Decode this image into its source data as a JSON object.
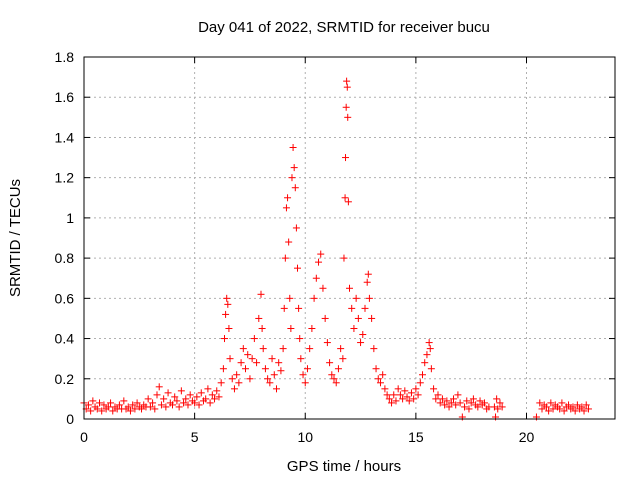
{
  "chart_data": {
    "type": "scatter",
    "title": "Day 041 of 2022, SRMTID for receiver bucu",
    "xlabel": "GPS time / hours",
    "ylabel": "SRMTID / TECUs",
    "xlim": [
      0,
      24
    ],
    "ylim": [
      0,
      1.8
    ],
    "xticks": [
      0,
      5,
      10,
      15,
      20
    ],
    "xtick_labels": [
      "0",
      "5",
      "10",
      "15",
      "20"
    ],
    "yticks": [
      0,
      0.2,
      0.4,
      0.6,
      0.8,
      1.0,
      1.2,
      1.4,
      1.6,
      1.8
    ],
    "ytick_labels": [
      "0",
      "0.2",
      "0.4",
      "0.6",
      "0.8",
      "1",
      "1.2",
      "1.4",
      "1.6",
      "1.8"
    ],
    "grid": true,
    "marker": "+",
    "color": "#ff0000",
    "series": [
      {
        "name": "SRMTID",
        "points": [
          [
            0.0,
            0.08
          ],
          [
            0.1,
            0.05
          ],
          [
            0.2,
            0.07
          ],
          [
            0.3,
            0.04
          ],
          [
            0.4,
            0.09
          ],
          [
            0.5,
            0.06
          ],
          [
            0.6,
            0.05
          ],
          [
            0.7,
            0.08
          ],
          [
            0.8,
            0.04
          ],
          [
            0.9,
            0.07
          ],
          [
            1.0,
            0.05
          ],
          [
            1.1,
            0.06
          ],
          [
            1.2,
            0.08
          ],
          [
            1.3,
            0.04
          ],
          [
            1.4,
            0.06
          ],
          [
            1.5,
            0.05
          ],
          [
            1.6,
            0.07
          ],
          [
            1.7,
            0.05
          ],
          [
            1.8,
            0.09
          ],
          [
            1.9,
            0.05
          ],
          [
            2.0,
            0.06
          ],
          [
            2.1,
            0.04
          ],
          [
            2.2,
            0.07
          ],
          [
            2.3,
            0.05
          ],
          [
            2.4,
            0.08
          ],
          [
            2.5,
            0.06
          ],
          [
            2.6,
            0.05
          ],
          [
            2.7,
            0.07
          ],
          [
            2.8,
            0.06
          ],
          [
            2.9,
            0.1
          ],
          [
            3.0,
            0.06
          ],
          [
            3.1,
            0.08
          ],
          [
            3.2,
            0.05
          ],
          [
            3.3,
            0.12
          ],
          [
            3.4,
            0.16
          ],
          [
            3.5,
            0.07
          ],
          [
            3.6,
            0.1
          ],
          [
            3.7,
            0.06
          ],
          [
            3.8,
            0.13
          ],
          [
            3.9,
            0.08
          ],
          [
            4.0,
            0.07
          ],
          [
            4.1,
            0.11
          ],
          [
            4.2,
            0.09
          ],
          [
            4.3,
            0.06
          ],
          [
            4.4,
            0.14
          ],
          [
            4.5,
            0.08
          ],
          [
            4.6,
            0.1
          ],
          [
            4.7,
            0.07
          ],
          [
            4.8,
            0.12
          ],
          [
            4.9,
            0.09
          ],
          [
            5.0,
            0.08
          ],
          [
            5.1,
            0.11
          ],
          [
            5.2,
            0.07
          ],
          [
            5.3,
            0.13
          ],
          [
            5.4,
            0.09
          ],
          [
            5.5,
            0.1
          ],
          [
            5.6,
            0.15
          ],
          [
            5.7,
            0.08
          ],
          [
            5.8,
            0.12
          ],
          [
            5.9,
            0.1
          ],
          [
            6.0,
            0.14
          ],
          [
            6.1,
            0.11
          ],
          [
            6.2,
            0.18
          ],
          [
            6.3,
            0.25
          ],
          [
            6.35,
            0.4
          ],
          [
            6.4,
            0.52
          ],
          [
            6.45,
            0.6
          ],
          [
            6.5,
            0.57
          ],
          [
            6.55,
            0.45
          ],
          [
            6.6,
            0.3
          ],
          [
            6.7,
            0.2
          ],
          [
            6.8,
            0.15
          ],
          [
            6.9,
            0.22
          ],
          [
            7.0,
            0.18
          ],
          [
            7.1,
            0.28
          ],
          [
            7.2,
            0.35
          ],
          [
            7.3,
            0.25
          ],
          [
            7.4,
            0.32
          ],
          [
            7.5,
            0.2
          ],
          [
            7.6,
            0.3
          ],
          [
            7.7,
            0.4
          ],
          [
            7.8,
            0.28
          ],
          [
            7.9,
            0.5
          ],
          [
            8.0,
            0.62
          ],
          [
            8.05,
            0.45
          ],
          [
            8.1,
            0.35
          ],
          [
            8.2,
            0.25
          ],
          [
            8.3,
            0.2
          ],
          [
            8.4,
            0.18
          ],
          [
            8.5,
            0.3
          ],
          [
            8.6,
            0.22
          ],
          [
            8.7,
            0.15
          ],
          [
            8.8,
            0.28
          ],
          [
            8.9,
            0.24
          ],
          [
            9.0,
            0.35
          ],
          [
            9.05,
            0.55
          ],
          [
            9.1,
            0.8
          ],
          [
            9.15,
            1.05
          ],
          [
            9.2,
            1.1
          ],
          [
            9.25,
            0.88
          ],
          [
            9.3,
            0.6
          ],
          [
            9.35,
            0.45
          ],
          [
            9.4,
            1.2
          ],
          [
            9.45,
            1.35
          ],
          [
            9.5,
            1.25
          ],
          [
            9.55,
            1.15
          ],
          [
            9.6,
            0.95
          ],
          [
            9.65,
            0.75
          ],
          [
            9.7,
            0.55
          ],
          [
            9.75,
            0.4
          ],
          [
            9.8,
            0.3
          ],
          [
            9.9,
            0.22
          ],
          [
            10.0,
            0.18
          ],
          [
            10.1,
            0.25
          ],
          [
            10.2,
            0.35
          ],
          [
            10.3,
            0.45
          ],
          [
            10.4,
            0.6
          ],
          [
            10.5,
            0.7
          ],
          [
            10.6,
            0.78
          ],
          [
            10.7,
            0.82
          ],
          [
            10.8,
            0.65
          ],
          [
            10.9,
            0.5
          ],
          [
            11.0,
            0.38
          ],
          [
            11.1,
            0.28
          ],
          [
            11.2,
            0.22
          ],
          [
            11.3,
            0.2
          ],
          [
            11.4,
            0.18
          ],
          [
            11.5,
            0.25
          ],
          [
            11.6,
            0.35
          ],
          [
            11.7,
            0.3
          ],
          [
            11.75,
            0.8
          ],
          [
            11.8,
            1.1
          ],
          [
            11.82,
            1.3
          ],
          [
            11.85,
            1.55
          ],
          [
            11.87,
            1.68
          ],
          [
            11.9,
            1.65
          ],
          [
            11.92,
            1.5
          ],
          [
            11.95,
            1.08
          ],
          [
            12.0,
            0.65
          ],
          [
            12.1,
            0.55
          ],
          [
            12.2,
            0.45
          ],
          [
            12.3,
            0.6
          ],
          [
            12.4,
            0.5
          ],
          [
            12.5,
            0.38
          ],
          [
            12.6,
            0.42
          ],
          [
            12.7,
            0.55
          ],
          [
            12.8,
            0.68
          ],
          [
            12.85,
            0.72
          ],
          [
            12.9,
            0.6
          ],
          [
            13.0,
            0.5
          ],
          [
            13.1,
            0.35
          ],
          [
            13.2,
            0.25
          ],
          [
            13.3,
            0.2
          ],
          [
            13.4,
            0.18
          ],
          [
            13.5,
            0.22
          ],
          [
            13.6,
            0.15
          ],
          [
            13.7,
            0.12
          ],
          [
            13.8,
            0.1
          ],
          [
            13.9,
            0.08
          ],
          [
            14.0,
            0.12
          ],
          [
            14.1,
            0.09
          ],
          [
            14.2,
            0.15
          ],
          [
            14.3,
            0.12
          ],
          [
            14.4,
            0.1
          ],
          [
            14.5,
            0.14
          ],
          [
            14.6,
            0.11
          ],
          [
            14.7,
            0.09
          ],
          [
            14.8,
            0.13
          ],
          [
            14.9,
            0.1
          ],
          [
            15.0,
            0.15
          ],
          [
            15.1,
            0.12
          ],
          [
            15.2,
            0.18
          ],
          [
            15.3,
            0.22
          ],
          [
            15.4,
            0.28
          ],
          [
            15.5,
            0.32
          ],
          [
            15.6,
            0.38
          ],
          [
            15.65,
            0.35
          ],
          [
            15.7,
            0.25
          ],
          [
            15.8,
            0.15
          ],
          [
            15.9,
            0.1
          ],
          [
            16.0,
            0.12
          ],
          [
            16.1,
            0.08
          ],
          [
            16.2,
            0.1
          ],
          [
            16.3,
            0.07
          ],
          [
            16.4,
            0.09
          ],
          [
            16.5,
            0.06
          ],
          [
            16.6,
            0.08
          ],
          [
            16.7,
            0.1
          ],
          [
            16.8,
            0.07
          ],
          [
            16.9,
            0.12
          ],
          [
            17.0,
            0.08
          ],
          [
            17.1,
            0.01
          ],
          [
            17.2,
            0.06
          ],
          [
            17.3,
            0.09
          ],
          [
            17.4,
            0.05
          ],
          [
            17.5,
            0.08
          ],
          [
            17.6,
            0.1
          ],
          [
            17.7,
            0.07
          ],
          [
            17.8,
            0.06
          ],
          [
            17.9,
            0.09
          ],
          [
            18.0,
            0.07
          ],
          [
            18.1,
            0.08
          ],
          [
            18.2,
            0.05
          ],
          [
            18.3,
            0.06
          ],
          [
            18.55,
            0.06
          ],
          [
            18.6,
            0.01
          ],
          [
            18.65,
            0.1
          ],
          [
            18.7,
            0.05
          ],
          [
            18.8,
            0.08
          ],
          [
            18.9,
            0.06
          ],
          [
            20.45,
            0.01
          ],
          [
            20.6,
            0.08
          ],
          [
            20.7,
            0.05
          ],
          [
            20.8,
            0.07
          ],
          [
            20.9,
            0.06
          ],
          [
            21.0,
            0.04
          ],
          [
            21.1,
            0.08
          ],
          [
            21.2,
            0.05
          ],
          [
            21.3,
            0.07
          ],
          [
            21.4,
            0.06
          ],
          [
            21.5,
            0.05
          ],
          [
            21.6,
            0.08
          ],
          [
            21.7,
            0.04
          ],
          [
            21.8,
            0.06
          ],
          [
            21.9,
            0.07
          ],
          [
            22.0,
            0.05
          ],
          [
            22.1,
            0.06
          ],
          [
            22.2,
            0.04
          ],
          [
            22.3,
            0.07
          ],
          [
            22.4,
            0.05
          ],
          [
            22.5,
            0.06
          ],
          [
            22.6,
            0.04
          ],
          [
            22.7,
            0.07
          ],
          [
            22.8,
            0.05
          ]
        ]
      }
    ]
  }
}
